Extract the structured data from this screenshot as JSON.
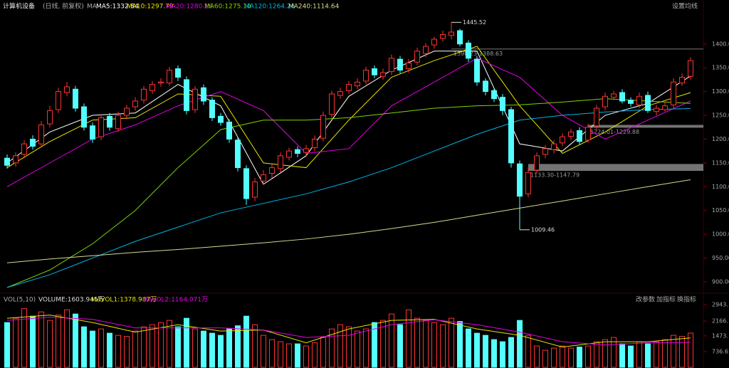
{
  "header": {
    "name": "计算机设备",
    "mode": "(日线, 前复权)",
    "ma_label": "MA",
    "ma_values": [
      "MA5:1332.84",
      "MA10:1297.79",
      "MA20:1280.16",
      "MA60:1275.10",
      "MA120:1264.26",
      "MA240:1114.64"
    ],
    "settings": "设置均线"
  },
  "chart_data": [
    {
      "type": "candlestick",
      "up_color": "#ff3232",
      "down_color": "#54ffff",
      "ylim": [
        879,
        1470
      ],
      "yticks": [
        {
          "value": 900,
          "label": "900.00"
        },
        {
          "value": 950,
          "label": "950.00"
        },
        {
          "value": 1000,
          "label": "1000.00"
        },
        {
          "value": 1050,
          "label": "1050.00"
        },
        {
          "value": 1100,
          "label": "1100.00"
        },
        {
          "value": 1150,
          "label": "1150.00"
        },
        {
          "value": 1200,
          "label": "1200.00"
        },
        {
          "value": 1250,
          "label": "1250.00"
        },
        {
          "value": 1300,
          "label": "1300.00"
        },
        {
          "value": 1350,
          "label": "1350.00"
        },
        {
          "value": 1400,
          "label": "1400.00"
        }
      ],
      "open": [
        1160,
        1150,
        1168,
        1200,
        1190,
        1232,
        1262,
        1298,
        1305,
        1268,
        1228,
        1205,
        1248,
        1222,
        1250,
        1268,
        1282,
        1302,
        1318,
        1318,
        1348,
        1325,
        1262,
        1308,
        1282,
        1248,
        1236,
        1198,
        1138,
        1078,
        1112,
        1128,
        1138,
        1162,
        1178,
        1172,
        1182,
        1202,
        1252,
        1292,
        1302,
        1312,
        1322,
        1348,
        1332,
        1342,
        1368,
        1348,
        1362,
        1380,
        1398,
        1412,
        1418,
        1428,
        1402,
        1368,
        1322,
        1302,
        1288,
        1262,
        1148,
        1085,
        1135,
        1168,
        1178,
        1192,
        1206,
        1218,
        1198,
        1228,
        1268,
        1288,
        1298,
        1282,
        1272,
        1292,
        1258,
        1262,
        1272,
        1318,
        1332
      ],
      "high": [
        1168,
        1172,
        1198,
        1208,
        1238,
        1270,
        1308,
        1320,
        1312,
        1275,
        1235,
        1252,
        1255,
        1258,
        1272,
        1288,
        1312,
        1322,
        1328,
        1352,
        1355,
        1332,
        1312,
        1315,
        1288,
        1255,
        1242,
        1205,
        1145,
        1118,
        1135,
        1148,
        1172,
        1182,
        1185,
        1188,
        1208,
        1258,
        1302,
        1308,
        1322,
        1328,
        1352,
        1355,
        1348,
        1378,
        1375,
        1368,
        1392,
        1402,
        1415,
        1428,
        1445.52,
        1432,
        1408,
        1375,
        1328,
        1308,
        1295,
        1268,
        1155,
        1140,
        1172,
        1188,
        1198,
        1212,
        1222,
        1225,
        1232,
        1272,
        1298,
        1302,
        1305,
        1288,
        1298,
        1300,
        1272,
        1278,
        1328,
        1338,
        1372
      ],
      "low": [
        1138,
        1142,
        1160,
        1178,
        1182,
        1225,
        1255,
        1290,
        1258,
        1218,
        1192,
        1198,
        1218,
        1215,
        1242,
        1260,
        1275,
        1295,
        1310,
        1312,
        1322,
        1252,
        1255,
        1272,
        1238,
        1228,
        1192,
        1132,
        1062,
        1070,
        1105,
        1118,
        1130,
        1155,
        1162,
        1165,
        1175,
        1195,
        1245,
        1285,
        1295,
        1305,
        1315,
        1328,
        1325,
        1335,
        1338,
        1340,
        1355,
        1372,
        1390,
        1405,
        1410,
        1395,
        1362,
        1312,
        1292,
        1278,
        1250,
        1140,
        1009.46,
        1078,
        1128,
        1160,
        1170,
        1185,
        1198,
        1188,
        1192,
        1220,
        1260,
        1282,
        1275,
        1268,
        1265,
        1255,
        1250,
        1258,
        1265,
        1312,
        1325
      ],
      "close": [
        1145,
        1165,
        1190,
        1185,
        1230,
        1260,
        1300,
        1310,
        1265,
        1225,
        1200,
        1245,
        1225,
        1250,
        1265,
        1280,
        1305,
        1315,
        1320,
        1345,
        1330,
        1260,
        1305,
        1280,
        1245,
        1235,
        1200,
        1140,
        1075,
        1110,
        1125,
        1140,
        1165,
        1175,
        1170,
        1180,
        1200,
        1250,
        1295,
        1300,
        1315,
        1320,
        1345,
        1335,
        1340,
        1370,
        1345,
        1360,
        1385,
        1395,
        1410,
        1420,
        1425,
        1400,
        1370,
        1320,
        1300,
        1285,
        1260,
        1150,
        1080,
        1130,
        1165,
        1180,
        1190,
        1205,
        1215,
        1195,
        1225,
        1265,
        1290,
        1295,
        1280,
        1275,
        1290,
        1260,
        1265,
        1270,
        1320,
        1330,
        1365
      ],
      "series": [
        {
          "name": "MA5",
          "color": "#ffffff",
          "x": [
            0,
            5,
            10,
            15,
            20,
            25,
            30,
            35,
            40,
            45,
            50,
            55,
            60,
            65,
            70,
            75,
            80
          ],
          "values": [
            1150,
            1215,
            1250,
            1255,
            1315,
            1270,
            1105,
            1165,
            1290,
            1345,
            1385,
            1385,
            1190,
            1175,
            1250,
            1275,
            1332.84
          ]
        },
        {
          "name": "MA10",
          "color": "#e6e600",
          "x": [
            0,
            5,
            10,
            15,
            20,
            25,
            30,
            35,
            40,
            45,
            50,
            55,
            60,
            65,
            70,
            75,
            80
          ],
          "values": [
            1140,
            1195,
            1240,
            1245,
            1295,
            1290,
            1150,
            1140,
            1240,
            1330,
            1365,
            1395,
            1270,
            1170,
            1215,
            1270,
            1297.79
          ]
        },
        {
          "name": "MA20",
          "color": "#e600e6",
          "x": [
            0,
            5,
            10,
            15,
            20,
            25,
            30,
            35,
            40,
            45,
            50,
            55,
            60,
            65,
            70,
            75,
            80
          ],
          "values": [
            1100,
            1150,
            1200,
            1230,
            1270,
            1300,
            1260,
            1170,
            1180,
            1270,
            1320,
            1370,
            1330,
            1250,
            1200,
            1240,
            1280.16
          ]
        },
        {
          "name": "MA60",
          "color": "#7fd400",
          "x": [
            0,
            5,
            10,
            15,
            20,
            25,
            30,
            35,
            40,
            45,
            50,
            55,
            60,
            65,
            70,
            75,
            80
          ],
          "values": [
            888,
            925,
            980,
            1050,
            1140,
            1220,
            1240,
            1240,
            1245,
            1255,
            1265,
            1270,
            1272,
            1278,
            1285,
            1280,
            1275.1
          ]
        },
        {
          "name": "MA120",
          "color": "#00b4e6",
          "x": [
            0,
            5,
            10,
            15,
            20,
            25,
            30,
            35,
            40,
            45,
            50,
            55,
            60,
            65,
            70,
            75,
            80
          ],
          "values": [
            888,
            915,
            950,
            985,
            1015,
            1045,
            1065,
            1085,
            1110,
            1140,
            1175,
            1210,
            1240,
            1250,
            1257,
            1262,
            1264.26
          ]
        },
        {
          "name": "MA240",
          "color": "#d8d890",
          "x": [
            0,
            5,
            10,
            15,
            20,
            25,
            30,
            35,
            40,
            45,
            50,
            55,
            60,
            65,
            70,
            75,
            80
          ],
          "values": [
            940,
            948,
            955,
            962,
            968,
            975,
            982,
            990,
            1000,
            1012,
            1025,
            1040,
            1055,
            1070,
            1085,
            1100,
            1114.64
          ]
        }
      ],
      "annotations": [
        {
          "label": "1445.52",
          "x": 52,
          "y": 1445.52
        },
        {
          "label": "1390.23-1388.63",
          "x": 52,
          "from": 1388.63,
          "to": 1390.23
        },
        {
          "label": "1224.01-1229.88",
          "x": 68,
          "from": 1224.01,
          "to": 1229.88
        },
        {
          "label": "1133.30-1147.79",
          "x": 61,
          "from": 1133.3,
          "to": 1147.79
        },
        {
          "label": "1009.46",
          "x": 60,
          "y": 1009.46
        }
      ]
    },
    {
      "type": "volume",
      "title": "VOL(5,10)",
      "readouts": [
        "VOLUME:1603.945万",
        "MAVOL1:1378.987万",
        "MAVOL2:1164.071万"
      ],
      "buttons": [
        "改参数",
        "加指标",
        "换指标"
      ],
      "ylim": [
        0,
        3040
      ],
      "yticks": [
        {
          "value": 736.6,
          "label": "736.6"
        },
        {
          "value": 1473,
          "label": "1473."
        },
        {
          "value": 2166,
          "label": "2166."
        },
        {
          "value": 2943,
          "label": "2943."
        }
      ],
      "values": [
        2100,
        2300,
        2750,
        2400,
        2600,
        2200,
        2450,
        2700,
        2500,
        1900,
        1700,
        1800,
        1600,
        1500,
        1450,
        1700,
        1900,
        2000,
        2100,
        2200,
        1900,
        2300,
        1800,
        1700,
        1600,
        1500,
        1800,
        1950,
        2400,
        2000,
        1500,
        1300,
        1200,
        1100,
        1100,
        1000,
        1150,
        1400,
        1800,
        2000,
        1900,
        1700,
        1800,
        2100,
        2200,
        2500,
        2000,
        2700,
        2300,
        2200,
        2100,
        2000,
        2300,
        2150,
        1800,
        1600,
        1500,
        1300,
        1200,
        1400,
        2200,
        1500,
        1000,
        800,
        900,
        1000,
        900,
        950,
        1000,
        1200,
        1300,
        1400,
        1100,
        1000,
        1200,
        1100,
        1200,
        1300,
        1500,
        1450,
        1603.945
      ],
      "series": [
        {
          "name": "MAVOL1",
          "color": "#e6e600",
          "x": [
            0,
            5,
            10,
            15,
            20,
            25,
            30,
            35,
            40,
            45,
            50,
            55,
            60,
            65,
            70,
            75,
            80
          ],
          "values": [
            2300,
            2450,
            2100,
            1650,
            2000,
            1700,
            1750,
            1150,
            1800,
            2200,
            2250,
            1800,
            1500,
            950,
            1200,
            1200,
            1378.987
          ]
        },
        {
          "name": "MAVOL2",
          "color": "#e600e6",
          "x": [
            0,
            5,
            10,
            15,
            20,
            25,
            30,
            35,
            40,
            45,
            50,
            55,
            60,
            65,
            70,
            75,
            80
          ],
          "values": [
            2200,
            2350,
            2250,
            1850,
            1850,
            1850,
            1750,
            1400,
            1500,
            2000,
            2230,
            2000,
            1650,
            1200,
            1050,
            1150,
            1164.071
          ]
        }
      ]
    }
  ]
}
